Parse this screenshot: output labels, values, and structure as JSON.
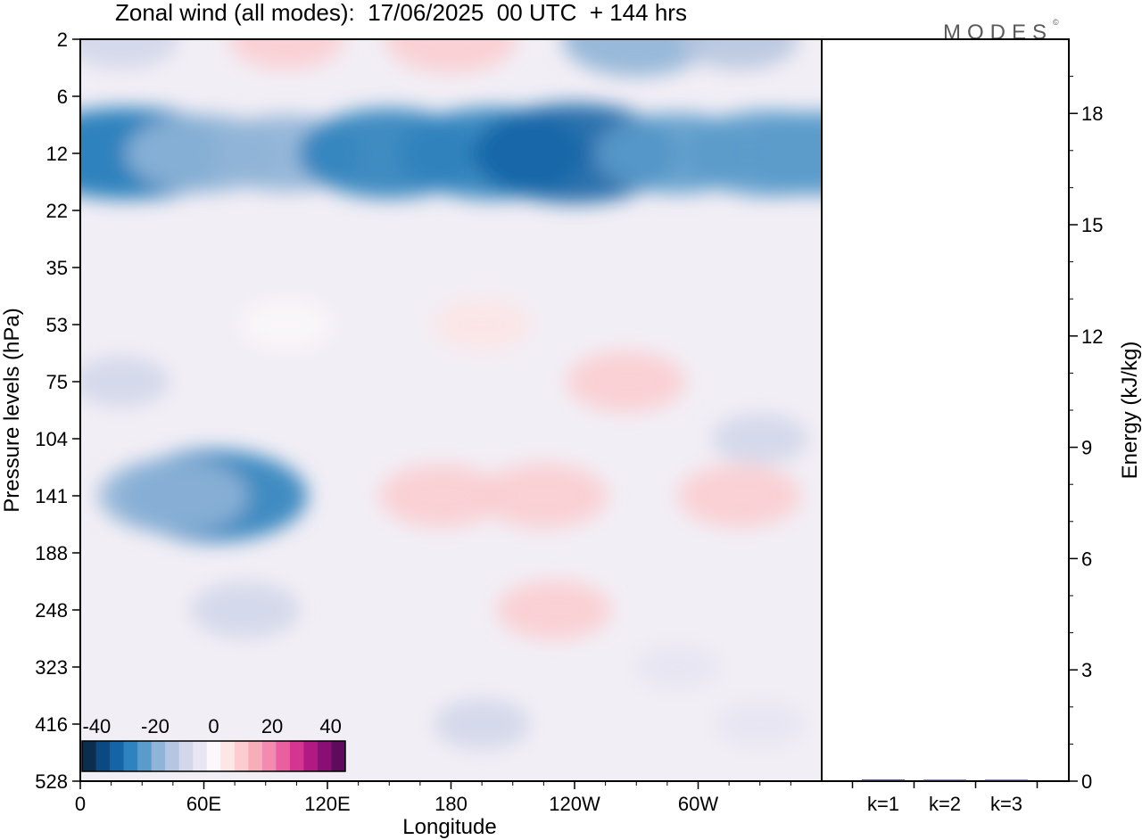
{
  "title": "Zonal wind (all modes):  17/06/2025  00 UTC  + 144 hrs",
  "logo": "MODES",
  "logo_mark": "©",
  "colors": {
    "scale": [
      "#0b2d4f",
      "#0b4a80",
      "#1565a6",
      "#2e82bd",
      "#5b9bcb",
      "#8fb4d7",
      "#b7c6e0",
      "#d2d7ea",
      "#e7e6f2",
      "#fbf7fa",
      "#fde6e6",
      "#fbcdd0",
      "#f8aeb8",
      "#f38ab0",
      "#ea5fa0",
      "#d43590",
      "#b11a82",
      "#8a0f72",
      "#5e0b5e"
    ],
    "background_field": "#f2eef5"
  },
  "chart_data": [
    {
      "type": "heatmap",
      "title": "Zonal wind (all modes):  17/06/2025  00 UTC  + 144 hrs",
      "xlabel": "Longitude",
      "ylabel": "Pressure levels (hPa)",
      "x_ticks": [
        "0",
        "60E",
        "120E",
        "180",
        "120W",
        "60W"
      ],
      "x_tick_values": [
        0,
        60,
        120,
        180,
        240,
        300
      ],
      "xlim": [
        0,
        360
      ],
      "y_ticks": [
        "2",
        "6",
        "12",
        "22",
        "35",
        "53",
        "75",
        "104",
        "141",
        "188",
        "248",
        "323",
        "416",
        "528"
      ],
      "colorbar": {
        "tick_labels": [
          "-40",
          "-20",
          "0",
          "20",
          "40"
        ],
        "tick_values": [
          -40,
          -20,
          0,
          20,
          40
        ],
        "range": [
          -45,
          45
        ],
        "step": 5
      },
      "features": [
        {
          "x": 0,
          "level": 12,
          "value": -22
        },
        {
          "x": 20,
          "level": 12,
          "value": -27
        },
        {
          "x": 30,
          "level": 12,
          "value": -26
        },
        {
          "x": 60,
          "level": 12,
          "value": -20
        },
        {
          "x": 100,
          "level": 12,
          "value": -19
        },
        {
          "x": 150,
          "level": 12,
          "value": -26
        },
        {
          "x": 200,
          "level": 12,
          "value": -27
        },
        {
          "x": 240,
          "level": 12,
          "value": -31
        },
        {
          "x": 290,
          "level": 12,
          "value": -21
        },
        {
          "x": 335,
          "level": 12,
          "value": -24
        },
        {
          "x": 360,
          "level": 12,
          "value": -23
        },
        {
          "x": 100,
          "level": 2,
          "value": 10
        },
        {
          "x": 180,
          "level": 2,
          "value": 14
        },
        {
          "x": 270,
          "level": 2,
          "value": -18
        },
        {
          "x": 20,
          "level": 2,
          "value": -10
        },
        {
          "x": 320,
          "level": 2,
          "value": -11
        },
        {
          "x": 65,
          "level": 141,
          "value": -27
        },
        {
          "x": 45,
          "level": 141,
          "value": -18
        },
        {
          "x": 80,
          "level": 248,
          "value": -9
        },
        {
          "x": 175,
          "level": 141,
          "value": 12
        },
        {
          "x": 225,
          "level": 141,
          "value": 13
        },
        {
          "x": 230,
          "level": 248,
          "value": 10
        },
        {
          "x": 265,
          "level": 75,
          "value": 11
        },
        {
          "x": 320,
          "level": 141,
          "value": 12
        },
        {
          "x": 330,
          "level": 104,
          "value": -6
        },
        {
          "x": 20,
          "level": 75,
          "value": -6
        },
        {
          "x": 195,
          "level": 53,
          "value": 6
        },
        {
          "x": 100,
          "level": 53,
          "value": 4
        },
        {
          "x": 330,
          "level": 416,
          "value": -5
        },
        {
          "x": 195,
          "level": 416,
          "value": -6
        },
        {
          "x": 290,
          "level": 323,
          "value": -4
        }
      ]
    },
    {
      "type": "bar",
      "ylabel": "Energy (kJ/kg)",
      "categories": [
        "k=1",
        "k=2",
        "k=3"
      ],
      "values": [
        0.04,
        0.02,
        0.01
      ],
      "ylim": [
        0,
        20
      ],
      "y_ticks": [
        0,
        3,
        6,
        9,
        12,
        15,
        18
      ]
    }
  ]
}
